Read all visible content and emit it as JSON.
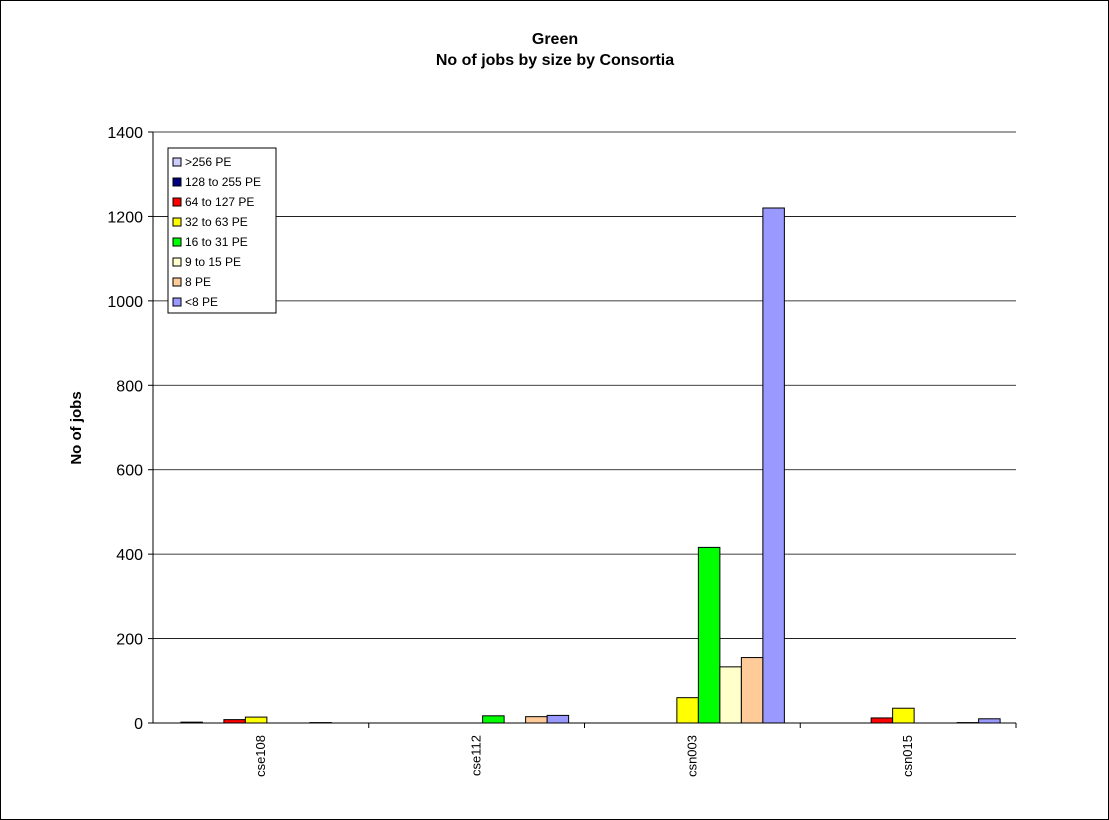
{
  "chart_data": {
    "type": "bar",
    "title_lines": [
      "Green",
      "No of jobs by size by Consortia"
    ],
    "xlabel": "",
    "ylabel": "No of jobs",
    "ylim": [
      0,
      1400
    ],
    "yticks": [
      0,
      200,
      400,
      600,
      800,
      1000,
      1200,
      1400
    ],
    "grid": true,
    "legend_position": "top-left",
    "categories": [
      "cse108",
      "cse112",
      "csn003",
      "csn015"
    ],
    "series": [
      {
        "name": "<8 PE",
        "color": "#9999ff",
        "values": [
          0,
          18,
          1220,
          10
        ]
      },
      {
        "name": "8 PE",
        "color": "#ffcc99",
        "values": [
          1,
          15,
          155,
          1
        ]
      },
      {
        "name": "9 to 15 PE",
        "color": "#ffffcc",
        "values": [
          0,
          0,
          133,
          0
        ]
      },
      {
        "name": "16 to 31 PE",
        "color": "#00ff00",
        "values": [
          0,
          17,
          416,
          0
        ]
      },
      {
        "name": "32 to 63 PE",
        "color": "#ffff00",
        "values": [
          14,
          0,
          60,
          35
        ]
      },
      {
        "name": "64 to 127 PE",
        "color": "#ff0000",
        "values": [
          8,
          0,
          0,
          12
        ]
      },
      {
        "name": "128 to 255 PE",
        "color": "#000080",
        "values": [
          0,
          0,
          0,
          0
        ]
      },
      {
        "name": ">256 PE",
        "color": "#ccccff",
        "values": [
          2,
          0,
          0,
          0
        ]
      }
    ],
    "legend_order": [
      ">256 PE",
      "128 to 255 PE",
      "64 to 127 PE",
      "32 to 63 PE",
      "16 to 31 PE",
      "9 to 15 PE",
      "8 PE",
      "<8 PE"
    ]
  }
}
